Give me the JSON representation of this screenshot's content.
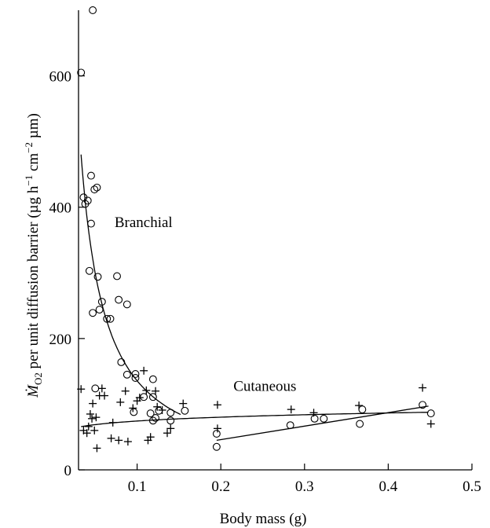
{
  "chart_data": {
    "type": "scatter",
    "xlabel": "Body mass (g)",
    "ylabel": {
      "symbol": "Ṁ",
      "sub": "O2",
      "text": " per unit diffusion barrier (µg h",
      "sup1": "−1",
      "mid": " cm",
      "sup2": "−2",
      "end": " µm)"
    },
    "xlim": [
      0.03,
      0.5
    ],
    "ylim": [
      0,
      700
    ],
    "xticks": [
      0.1,
      0.2,
      0.3,
      0.4,
      0.5
    ],
    "xtick_labels": [
      "0.1",
      "0.2",
      "0.3",
      "0.4",
      "0.5"
    ],
    "yticks": [
      0,
      200,
      400,
      600
    ],
    "ytick_labels": [
      "0",
      "200",
      "400",
      "600"
    ],
    "grid": false,
    "annotations": [
      {
        "text": "Branchial",
        "x": 0.073,
        "y": 370
      },
      {
        "text": "Cutaneous",
        "x": 0.215,
        "y": 120
      }
    ],
    "series": [
      {
        "marker": "circle",
        "points": [
          [
            0.033,
            605
          ],
          [
            0.047,
            700
          ],
          [
            0.036,
            415
          ],
          [
            0.038,
            405
          ],
          [
            0.041,
            410
          ],
          [
            0.045,
            448
          ],
          [
            0.049,
            427
          ],
          [
            0.052,
            430
          ],
          [
            0.045,
            375
          ],
          [
            0.043,
            303
          ],
          [
            0.053,
            294
          ],
          [
            0.047,
            239
          ],
          [
            0.055,
            244
          ],
          [
            0.058,
            256
          ],
          [
            0.064,
            230
          ],
          [
            0.068,
            230
          ],
          [
            0.076,
            295
          ],
          [
            0.078,
            259
          ],
          [
            0.088,
            252
          ],
          [
            0.081,
            164
          ],
          [
            0.05,
            124
          ],
          [
            0.088,
            145
          ],
          [
            0.098,
            146
          ],
          [
            0.098,
            140
          ],
          [
            0.119,
            138
          ],
          [
            0.108,
            111
          ],
          [
            0.119,
            111
          ],
          [
            0.096,
            88
          ],
          [
            0.116,
            86
          ],
          [
            0.119,
            75
          ],
          [
            0.126,
            90
          ],
          [
            0.14,
            87
          ],
          [
            0.157,
            90
          ],
          [
            0.14,
            75
          ],
          [
            0.195,
            55
          ],
          [
            0.195,
            35
          ],
          [
            0.283,
            68
          ],
          [
            0.312,
            78
          ],
          [
            0.323,
            78
          ],
          [
            0.366,
            70
          ],
          [
            0.369,
            92
          ],
          [
            0.441,
            99
          ],
          [
            0.451,
            86
          ],
          [
            0.122,
            79
          ]
        ]
      },
      {
        "marker": "plus",
        "points": [
          [
            0.033,
            123
          ],
          [
            0.036,
            60
          ],
          [
            0.04,
            56
          ],
          [
            0.042,
            66
          ],
          [
            0.044,
            85
          ],
          [
            0.047,
            101
          ],
          [
            0.046,
            78
          ],
          [
            0.049,
            60
          ],
          [
            0.051,
            80
          ],
          [
            0.052,
            33
          ],
          [
            0.055,
            113
          ],
          [
            0.058,
            124
          ],
          [
            0.061,
            113
          ],
          [
            0.069,
            48
          ],
          [
            0.071,
            72
          ],
          [
            0.078,
            45
          ],
          [
            0.08,
            103
          ],
          [
            0.086,
            120
          ],
          [
            0.089,
            43
          ],
          [
            0.095,
            94
          ],
          [
            0.1,
            105
          ],
          [
            0.103,
            110
          ],
          [
            0.108,
            151
          ],
          [
            0.111,
            121
          ],
          [
            0.113,
            45
          ],
          [
            0.116,
            50
          ],
          [
            0.122,
            120
          ],
          [
            0.124,
            96
          ],
          [
            0.13,
            91
          ],
          [
            0.136,
            56
          ],
          [
            0.14,
            63
          ],
          [
            0.155,
            101
          ],
          [
            0.196,
            99
          ],
          [
            0.196,
            63
          ],
          [
            0.284,
            92
          ],
          [
            0.311,
            87
          ],
          [
            0.365,
            98
          ],
          [
            0.441,
            125
          ],
          [
            0.451,
            70
          ]
        ]
      }
    ],
    "fits": [
      {
        "name_label": "branchial-fit",
        "x_range": [
          0.033,
          0.152
        ],
        "a": 9.83,
        "b": -1.14
      },
      {
        "name_label": "cutaneous-fit",
        "x_range": [
          0.033,
          0.448
        ],
        "a": 95.8,
        "b": 0.11
      },
      {
        "name_label": "linear-fit",
        "x_range": [
          0.195,
          0.448
        ],
        "line_y": [
          45,
          97
        ]
      }
    ]
  }
}
